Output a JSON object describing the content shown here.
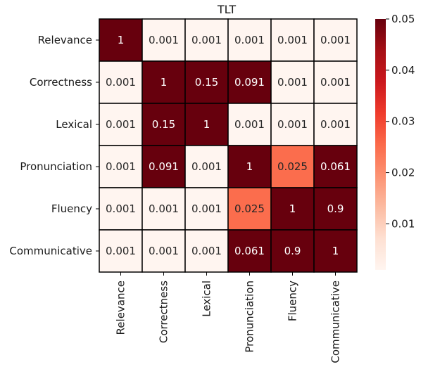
{
  "chart_data": {
    "type": "heatmap",
    "title": "TLT",
    "rows": [
      "Relevance",
      "Correctness",
      "Lexical",
      "Pronunciation",
      "Fluency",
      "Communicative"
    ],
    "columns": [
      "Relevance",
      "Correctness",
      "Lexical",
      "Pronunciation",
      "Fluency",
      "Communicative"
    ],
    "values": [
      [
        1,
        0.001,
        0.001,
        0.001,
        0.001,
        0.001
      ],
      [
        0.001,
        1,
        0.15,
        0.091,
        0.001,
        0.001
      ],
      [
        0.001,
        0.15,
        1,
        0.001,
        0.001,
        0.001
      ],
      [
        0.001,
        0.091,
        0.001,
        1,
        0.025,
        0.061
      ],
      [
        0.001,
        0.001,
        0.001,
        0.025,
        1,
        0.9
      ],
      [
        0.001,
        0.001,
        0.001,
        0.061,
        0.9,
        1
      ]
    ],
    "value_labels": [
      [
        "1",
        "0.001",
        "0.001",
        "0.001",
        "0.001",
        "0.001"
      ],
      [
        "0.001",
        "1",
        "0.15",
        "0.091",
        "0.001",
        "0.001"
      ],
      [
        "0.001",
        "0.15",
        "1",
        "0.001",
        "0.001",
        "0.001"
      ],
      [
        "0.001",
        "0.091",
        "0.001",
        "1",
        "0.025",
        "0.061"
      ],
      [
        "0.001",
        "0.001",
        "0.001",
        "0.025",
        "1",
        "0.9"
      ],
      [
        "0.001",
        "0.001",
        "0.001",
        "0.061",
        "0.9",
        "1"
      ]
    ],
    "colorbar": {
      "range": [
        0.001,
        0.05
      ],
      "ticks": [
        0.01,
        0.02,
        0.03,
        0.04,
        0.05
      ],
      "tick_labels": [
        "0.01",
        "0.02",
        "0.03",
        "0.04",
        "0.05"
      ],
      "colormap": "Reds",
      "position": "right"
    },
    "colors": {
      "low": "#fff5f0",
      "high": "#67000d",
      "cell_border": "#000000",
      "text_on_light": "#262626",
      "text_on_dark": "#ffffff"
    }
  }
}
